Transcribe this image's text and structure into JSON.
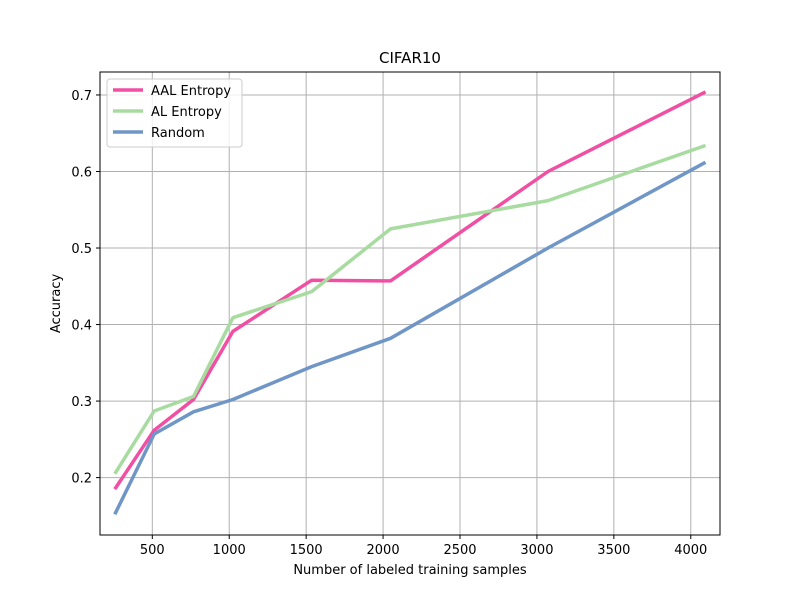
{
  "chart_data": {
    "type": "line",
    "title": "CIFAR10",
    "xlabel": "Number of labeled training samples",
    "ylabel": "Accuracy",
    "xlim": [
      160,
      4190
    ],
    "ylim": [
      0.125,
      0.73
    ],
    "xticks": [
      500,
      1000,
      1500,
      2000,
      2500,
      3000,
      3500,
      4000
    ],
    "yticks": [
      0.2,
      0.3,
      0.4,
      0.5,
      0.6,
      0.7
    ],
    "grid": true,
    "legend_position": "top-left",
    "series": [
      {
        "name": "AAL Entropy",
        "color": "#f04fa3",
        "x": [
          256,
          512,
          768,
          1024,
          1536,
          2048,
          3072,
          4096
        ],
        "y": [
          0.185,
          0.262,
          0.302,
          0.391,
          0.458,
          0.457,
          0.6,
          0.704
        ]
      },
      {
        "name": "AL Entropy",
        "color": "#a8dba0",
        "x": [
          256,
          512,
          768,
          1024,
          1536,
          2048,
          3072,
          4096
        ],
        "y": [
          0.205,
          0.287,
          0.306,
          0.409,
          0.443,
          0.525,
          0.562,
          0.634
        ]
      },
      {
        "name": "Random",
        "color": "#7096c7",
        "x": [
          256,
          512,
          768,
          1024,
          1536,
          2048,
          3072,
          4096
        ],
        "y": [
          0.152,
          0.257,
          0.286,
          0.302,
          0.345,
          0.382,
          0.5,
          0.612
        ]
      }
    ]
  }
}
